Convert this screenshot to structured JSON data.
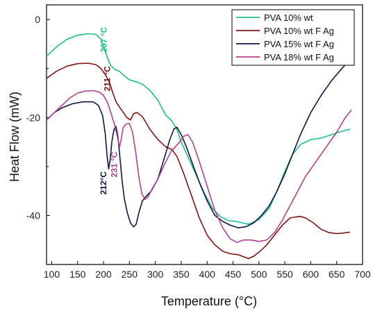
{
  "chart_data": {
    "type": "line",
    "title": "",
    "xlabel": "Temperature (°C)",
    "ylabel": "Heat Flow (mW)",
    "xlim": [
      90,
      700
    ],
    "ylim": [
      -50,
      3
    ],
    "x_ticks": [
      100,
      150,
      200,
      250,
      300,
      350,
      400,
      450,
      500,
      550,
      600,
      650,
      700
    ],
    "y_ticks": [
      0,
      -20,
      -40
    ],
    "grid": false,
    "legend_position": "top-right",
    "series": [
      {
        "name": "PVA 10% wt",
        "color": "#1bbf8a",
        "points": [
          [
            90,
            -7.5
          ],
          [
            110,
            -5.5
          ],
          [
            130,
            -4
          ],
          [
            150,
            -3.2
          ],
          [
            170,
            -2.9
          ],
          [
            185,
            -3
          ],
          [
            195,
            -4
          ],
          [
            200,
            -5.5
          ],
          [
            205,
            -7
          ],
          [
            210,
            -8.5
          ],
          [
            215,
            -9.5
          ],
          [
            222,
            -10.2
          ],
          [
            230,
            -10.5
          ],
          [
            240,
            -11.5
          ],
          [
            250,
            -12.3
          ],
          [
            260,
            -12.6
          ],
          [
            275,
            -13.2
          ],
          [
            290,
            -14.5
          ],
          [
            305,
            -16.5
          ],
          [
            320,
            -19.5
          ],
          [
            330,
            -20.5
          ],
          [
            340,
            -22
          ],
          [
            350,
            -25
          ],
          [
            365,
            -28.5
          ],
          [
            380,
            -32
          ],
          [
            395,
            -35.5
          ],
          [
            410,
            -38.5
          ],
          [
            425,
            -40.2
          ],
          [
            440,
            -41
          ],
          [
            460,
            -41.3
          ],
          [
            480,
            -41.8
          ],
          [
            500,
            -40.8
          ],
          [
            520,
            -38.5
          ],
          [
            535,
            -35
          ],
          [
            550,
            -31
          ],
          [
            565,
            -27.5
          ],
          [
            580,
            -25.5
          ],
          [
            600,
            -24.5
          ],
          [
            620,
            -24.2
          ],
          [
            640,
            -23.5
          ],
          [
            660,
            -22.8
          ],
          [
            675,
            -22.4
          ]
        ]
      },
      {
        "name": "PVA 10% wt F Ag",
        "color": "#7a1414",
        "points": [
          [
            90,
            -12
          ],
          [
            110,
            -10.5
          ],
          [
            130,
            -9.5
          ],
          [
            150,
            -9
          ],
          [
            170,
            -8.9
          ],
          [
            185,
            -9.2
          ],
          [
            195,
            -10
          ],
          [
            205,
            -11.5
          ],
          [
            212,
            -13
          ],
          [
            218,
            -15
          ],
          [
            225,
            -17
          ],
          [
            235,
            -18.5
          ],
          [
            245,
            -20
          ],
          [
            252,
            -20.5
          ],
          [
            258,
            -19.2
          ],
          [
            265,
            -19
          ],
          [
            275,
            -19.8
          ],
          [
            290,
            -22.5
          ],
          [
            305,
            -24.5
          ],
          [
            320,
            -26
          ],
          [
            332,
            -26.5
          ],
          [
            342,
            -28
          ],
          [
            355,
            -31.5
          ],
          [
            370,
            -36
          ],
          [
            385,
            -40.5
          ],
          [
            400,
            -44
          ],
          [
            415,
            -46
          ],
          [
            430,
            -47.3
          ],
          [
            445,
            -47.8
          ],
          [
            460,
            -48
          ],
          [
            470,
            -48.4
          ],
          [
            480,
            -48.8
          ],
          [
            490,
            -48.3
          ],
          [
            500,
            -47.5
          ],
          [
            515,
            -46
          ],
          [
            530,
            -44
          ],
          [
            545,
            -42
          ],
          [
            560,
            -40.5
          ],
          [
            570,
            -40.3
          ],
          [
            580,
            -40.2
          ],
          [
            590,
            -40.5
          ],
          [
            605,
            -41.5
          ],
          [
            620,
            -42.8
          ],
          [
            635,
            -43.5
          ],
          [
            650,
            -43.7
          ],
          [
            662,
            -43.6
          ],
          [
            675,
            -43.4
          ]
        ]
      },
      {
        "name": "PVA 15% wt F Ag",
        "color": "#111545",
        "points": [
          [
            90,
            -20.5
          ],
          [
            105,
            -19
          ],
          [
            120,
            -18
          ],
          [
            140,
            -17.2
          ],
          [
            160,
            -16.8
          ],
          [
            180,
            -16.8
          ],
          [
            190,
            -17.5
          ],
          [
            198,
            -19.5
          ],
          [
            203,
            -23
          ],
          [
            207,
            -28
          ],
          [
            210,
            -30.5
          ],
          [
            213,
            -28.5
          ],
          [
            216,
            -25
          ],
          [
            220,
            -22.5
          ],
          [
            224,
            -21.8
          ],
          [
            228,
            -24
          ],
          [
            232,
            -28.5
          ],
          [
            236,
            -33
          ],
          [
            240,
            -36.5
          ],
          [
            246,
            -39.5
          ],
          [
            252,
            -41.5
          ],
          [
            258,
            -42.3
          ],
          [
            263,
            -41.8
          ],
          [
            268,
            -39.5
          ],
          [
            275,
            -37
          ],
          [
            283,
            -36
          ],
          [
            292,
            -35
          ],
          [
            305,
            -32.5
          ],
          [
            318,
            -28
          ],
          [
            328,
            -24.5
          ],
          [
            336,
            -22.3
          ],
          [
            342,
            -22
          ],
          [
            350,
            -23.5
          ],
          [
            360,
            -26
          ],
          [
            372,
            -29.5
          ],
          [
            386,
            -33.5
          ],
          [
            400,
            -37
          ],
          [
            415,
            -40
          ],
          [
            430,
            -41.2
          ],
          [
            445,
            -42
          ],
          [
            460,
            -42.5
          ],
          [
            475,
            -42.3
          ],
          [
            490,
            -41.5
          ],
          [
            505,
            -40
          ],
          [
            520,
            -38
          ],
          [
            535,
            -35
          ],
          [
            550,
            -31.5
          ],
          [
            565,
            -27.5
          ],
          [
            580,
            -23.5
          ],
          [
            600,
            -19
          ],
          [
            620,
            -15.5
          ],
          [
            640,
            -12.5
          ],
          [
            660,
            -10
          ],
          [
            675,
            -8.3
          ]
        ]
      },
      {
        "name": "PVA 18% wt F Ag",
        "color": "#b0408c",
        "points": [
          [
            90,
            -20.5
          ],
          [
            105,
            -19
          ],
          [
            120,
            -17.5
          ],
          [
            135,
            -16
          ],
          [
            150,
            -15
          ],
          [
            165,
            -14.6
          ],
          [
            180,
            -14.5
          ],
          [
            192,
            -14.8
          ],
          [
            200,
            -15.5
          ],
          [
            208,
            -17
          ],
          [
            214,
            -19
          ],
          [
            220,
            -21
          ],
          [
            226,
            -23.5
          ],
          [
            231,
            -26
          ],
          [
            234,
            -24.5
          ],
          [
            238,
            -22
          ],
          [
            244,
            -21.3
          ],
          [
            250,
            -21.2
          ],
          [
            256,
            -23
          ],
          [
            262,
            -27
          ],
          [
            268,
            -32
          ],
          [
            274,
            -35.5
          ],
          [
            280,
            -36.7
          ],
          [
            286,
            -36.2
          ],
          [
            294,
            -34.5
          ],
          [
            305,
            -32.5
          ],
          [
            318,
            -29.5
          ],
          [
            330,
            -27
          ],
          [
            343,
            -25.5
          ],
          [
            355,
            -23.8
          ],
          [
            363,
            -23.5
          ],
          [
            372,
            -25
          ],
          [
            385,
            -29
          ],
          [
            400,
            -34
          ],
          [
            415,
            -39
          ],
          [
            430,
            -42.5
          ],
          [
            445,
            -44.8
          ],
          [
            458,
            -45.5
          ],
          [
            470,
            -45
          ],
          [
            485,
            -45
          ],
          [
            500,
            -45.3
          ],
          [
            515,
            -45
          ],
          [
            530,
            -43.5
          ],
          [
            545,
            -41
          ],
          [
            560,
            -38
          ],
          [
            575,
            -35
          ],
          [
            590,
            -32
          ],
          [
            610,
            -29
          ],
          [
            630,
            -26
          ],
          [
            650,
            -23
          ],
          [
            665,
            -20.3
          ],
          [
            678,
            -18.5
          ]
        ]
      }
    ],
    "annotations": [
      {
        "text": "207 °C",
        "color": "#1bbf8a",
        "x": 206,
        "y": -1.5
      },
      {
        "text": "211 °C",
        "color": "#7a1414",
        "x": 213,
        "y": -9.5
      },
      {
        "text": "212°C",
        "color": "#111545",
        "x": 205,
        "y": -31
      },
      {
        "text": "231 °C",
        "color": "#b0408c",
        "x": 226,
        "y": -27
      }
    ]
  }
}
